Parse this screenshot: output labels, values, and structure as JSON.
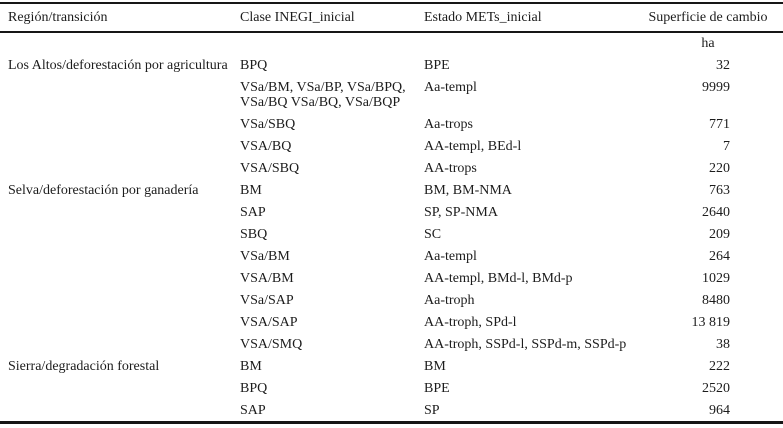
{
  "colors": {
    "background": "#ffffff",
    "text": "#1c1c1c",
    "rule": "#161616"
  },
  "table": {
    "columns": {
      "region": "Región/transición",
      "clase": "Clase INEGI_inicial",
      "estado": "Estado METs_inicial",
      "superficie": "Superficie de cambio"
    },
    "unit": "ha",
    "rows": [
      {
        "region": "Los Altos/deforestación por agricultura",
        "clase": "BPQ",
        "estado": "BPE",
        "superficie": "32"
      },
      {
        "region": "",
        "clase": "VSa/BM, VSa/BP, VSa/BPQ,\nVSa/BQ VSa/BQ, VSa/BQP",
        "estado": "Aa-templ",
        "superficie": "9999"
      },
      {
        "region": "",
        "clase": "VSa/SBQ",
        "estado": "Aa-trops",
        "superficie": "771"
      },
      {
        "region": "",
        "clase": "VSA/BQ",
        "estado": "AA-templ, BEd-l",
        "superficie": "7"
      },
      {
        "region": "",
        "clase": "VSA/SBQ",
        "estado": "AA-trops",
        "superficie": "220"
      },
      {
        "region": "Selva/deforestación por ganadería",
        "clase": "BM",
        "estado": "BM, BM-NMA",
        "superficie": "763"
      },
      {
        "region": "",
        "clase": "SAP",
        "estado": "SP, SP-NMA",
        "superficie": "2640"
      },
      {
        "region": "",
        "clase": "SBQ",
        "estado": "SC",
        "superficie": "209"
      },
      {
        "region": "",
        "clase": "VSa/BM",
        "estado": "Aa-templ",
        "superficie": "264"
      },
      {
        "region": "",
        "clase": "VSA/BM",
        "estado": "AA-templ, BMd-l, BMd-p",
        "superficie": "1029"
      },
      {
        "region": "",
        "clase": "VSa/SAP",
        "estado": "Aa-troph",
        "superficie": "8480"
      },
      {
        "region": "",
        "clase": "VSA/SAP",
        "estado": "AA-troph, SPd-l",
        "superficie": "13 819"
      },
      {
        "region": "",
        "clase": "VSA/SMQ",
        "estado": "AA-troph, SSPd-l, SSPd-m, SSPd-p",
        "superficie": "38"
      },
      {
        "region": "Sierra/degradación forestal",
        "clase": "BM",
        "estado": "BM",
        "superficie": "222"
      },
      {
        "region": "",
        "clase": "BPQ",
        "estado": "BPE",
        "superficie": "2520"
      },
      {
        "region": "",
        "clase": "SAP",
        "estado": "SP",
        "superficie": "964"
      }
    ]
  }
}
